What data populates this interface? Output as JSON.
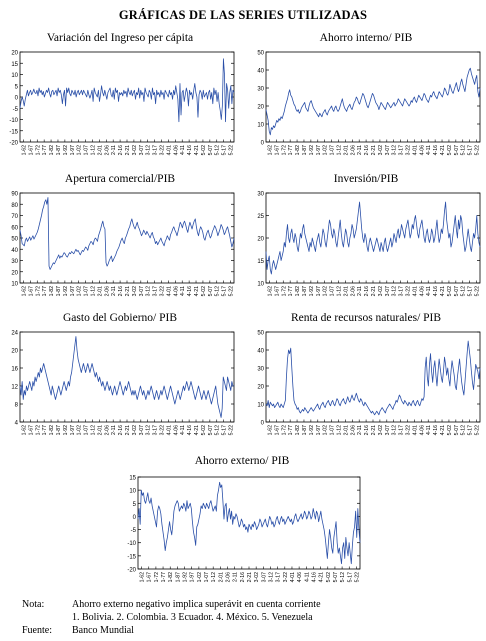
{
  "page_title": "GRÁFICAS DE LAS SERIES UTILIZADAS",
  "x_tick_labels": [
    "1-62",
    "1-67",
    "1-72",
    "1-77",
    "1-82",
    "1-87",
    "1-92",
    "1-97",
    "1-02",
    "1-07",
    "1-12",
    "2-01",
    "2-06",
    "2-11",
    "2-16",
    "2-21",
    "3-02",
    "3-07",
    "3-12",
    "3-17",
    "3-22",
    "4-01",
    "4-06",
    "4-11",
    "4-16",
    "4-21",
    "5-02",
    "5-07",
    "5-12",
    "5-17",
    "5-22"
  ],
  "chart_data": [
    {
      "type": "line",
      "title": "Variación del Ingreso per cápita",
      "ylim": [
        -20,
        20
      ],
      "yticks": [
        -20,
        -15,
        -10,
        -5,
        0,
        5,
        10,
        15,
        20
      ],
      "n_points": 200,
      "values": [
        -5,
        -2,
        0,
        -1.5,
        -4,
        -1,
        1,
        3,
        0.5,
        2,
        3,
        1,
        2,
        3.5,
        2,
        1.5,
        3,
        0.5,
        4,
        2,
        3,
        1,
        2.5,
        0,
        1.5,
        3,
        2,
        4,
        1.5,
        0,
        2.5,
        3,
        1,
        2,
        3,
        0.5,
        4,
        2,
        3,
        1,
        -3,
        1,
        3,
        -4,
        4,
        2,
        4,
        1.5,
        0.5,
        3,
        2,
        1,
        3,
        0,
        2,
        3,
        1,
        2,
        3,
        1,
        3,
        2,
        1,
        0,
        3,
        1,
        -0.5,
        1,
        3,
        -2,
        4,
        2,
        1,
        0,
        3,
        -2,
        1,
        5,
        2,
        0.5,
        3,
        1,
        -1,
        2,
        3,
        4,
        1,
        0,
        3,
        -1,
        4,
        2,
        3,
        -2,
        2,
        1,
        2,
        0.5,
        3,
        1.5,
        2.5,
        0,
        4,
        2,
        1,
        3,
        0.5,
        2,
        3,
        -1,
        2,
        1,
        4,
        -0.5,
        3,
        1,
        2,
        -2,
        4,
        2,
        1,
        0,
        3,
        2,
        -1,
        4,
        1,
        2,
        -3,
        3,
        1,
        2,
        0,
        3,
        1,
        2,
        -1,
        3,
        2,
        1,
        0,
        3,
        1,
        2,
        -1,
        3,
        1,
        5,
        2,
        -1,
        -11,
        6,
        -8,
        2,
        3,
        -2,
        1,
        4,
        2,
        -4,
        3,
        1,
        2,
        -1,
        3,
        6,
        2,
        0,
        -9,
        1,
        3,
        2,
        -1,
        3,
        0,
        1,
        2,
        -1,
        2,
        3,
        -1,
        2,
        -3,
        4,
        1,
        3,
        -2,
        2,
        -3,
        -6,
        -10,
        -4,
        17,
        10,
        -11,
        6,
        3,
        -5,
        2,
        5,
        -3,
        3,
        2
      ]
    },
    {
      "type": "line",
      "title": "Ahorro interno/ PIB",
      "ylim": [
        0,
        50
      ],
      "yticks": [
        0,
        10,
        20,
        30,
        40,
        50
      ],
      "n_points": 200,
      "values": [
        18,
        15,
        12,
        6,
        4,
        8,
        7,
        9,
        8,
        10,
        12,
        11,
        13,
        12,
        14,
        13,
        15,
        17,
        20,
        22,
        24,
        27,
        29,
        26,
        25,
        23,
        21,
        20,
        18,
        17,
        18,
        16,
        17,
        19,
        20,
        21,
        22,
        19,
        18,
        17,
        20,
        22,
        23,
        21,
        19,
        18,
        17,
        16,
        15,
        14,
        16,
        15,
        14,
        16,
        17,
        18,
        16,
        15,
        17,
        18,
        19,
        20,
        18,
        17,
        19,
        20,
        18,
        17,
        18,
        20,
        22,
        24,
        21,
        19,
        18,
        17,
        19,
        20,
        21,
        19,
        18,
        20,
        22,
        23,
        25,
        24,
        22,
        21,
        23,
        25,
        27,
        26,
        24,
        22,
        20,
        19,
        21,
        23,
        25,
        27,
        26,
        24,
        22,
        21,
        20,
        18,
        20,
        22,
        21,
        20,
        19,
        18,
        20,
        22,
        21,
        20,
        19,
        20,
        21,
        22,
        20,
        21,
        22,
        24,
        23,
        22,
        21,
        20,
        22,
        24,
        23,
        22,
        21,
        20,
        21,
        23,
        22,
        24,
        25,
        23,
        22,
        24,
        26,
        25,
        24,
        23,
        25,
        27,
        26,
        24,
        23,
        22,
        24,
        26,
        25,
        27,
        28,
        26,
        25,
        24,
        26,
        28,
        27,
        26,
        25,
        27,
        30,
        29,
        27,
        26,
        28,
        32,
        30,
        28,
        27,
        29,
        31,
        33,
        30,
        28,
        30,
        33,
        35,
        32,
        30,
        28,
        32,
        36,
        38,
        40,
        41,
        38,
        36,
        34,
        32,
        35,
        37,
        28,
        25,
        30
      ]
    },
    {
      "type": "line",
      "title": "Apertura comercial/PIB",
      "ylim": [
        10,
        90
      ],
      "yticks": [
        10,
        20,
        30,
        40,
        50,
        60,
        70,
        80,
        90
      ],
      "n_points": 200,
      "values": [
        57,
        52,
        45,
        44,
        43,
        48,
        50,
        47,
        49,
        51,
        48,
        50,
        52,
        49,
        51,
        53,
        55,
        58,
        62,
        66,
        70,
        75,
        78,
        82,
        84,
        80,
        86,
        25,
        22,
        24,
        26,
        28,
        27,
        29,
        31,
        33,
        35,
        32,
        34,
        33,
        35,
        37,
        36,
        34,
        33,
        35,
        37,
        36,
        38,
        37,
        36,
        38,
        40,
        38,
        39,
        37,
        35,
        37,
        39,
        38,
        40,
        42,
        41,
        39,
        43,
        45,
        47,
        46,
        44,
        48,
        50,
        49,
        47,
        52,
        55,
        58,
        62,
        65,
        60,
        58,
        28,
        25,
        27,
        30,
        32,
        34,
        29,
        31,
        33,
        35,
        38,
        40,
        42,
        45,
        48,
        50,
        47,
        45,
        50,
        52,
        55,
        58,
        60,
        64,
        67,
        63,
        60,
        58,
        61,
        64,
        60,
        58,
        55,
        52,
        54,
        57,
        55,
        53,
        56,
        54,
        52,
        50,
        53,
        55,
        51,
        49,
        45,
        47,
        44,
        46,
        48,
        50,
        47,
        45,
        43,
        47,
        49,
        52,
        50,
        48,
        53,
        55,
        58,
        60,
        57,
        55,
        52,
        56,
        60,
        64,
        62,
        59,
        63,
        65,
        62,
        58,
        55,
        60,
        64,
        61,
        58,
        62,
        65,
        67,
        60,
        55,
        52,
        57,
        60,
        58,
        55,
        50,
        48,
        52,
        55,
        57,
        53,
        50,
        52,
        56,
        58,
        61,
        59,
        56,
        52,
        55,
        58,
        62,
        60,
        57,
        53,
        55,
        58,
        60,
        56,
        52,
        47,
        42,
        45,
        50
      ]
    },
    {
      "type": "line",
      "title": "Inversión/PIB",
      "ylim": [
        10,
        30
      ],
      "yticks": [
        10,
        15,
        20,
        25,
        30
      ],
      "n_points": 200,
      "values": [
        17,
        13,
        15,
        16,
        13,
        12,
        14,
        15,
        14,
        13,
        14,
        15,
        16,
        17,
        15,
        16,
        17,
        19,
        18,
        21,
        23,
        20,
        19,
        21,
        22,
        20,
        19,
        21,
        20,
        18,
        17,
        19,
        21,
        20,
        22,
        23,
        21,
        20,
        19,
        18,
        17,
        19,
        18,
        20,
        19,
        18,
        17,
        19,
        20,
        21,
        19,
        18,
        20,
        22,
        21,
        19,
        18,
        20,
        22,
        24,
        23,
        21,
        20,
        22,
        21,
        19,
        18,
        20,
        22,
        24,
        21,
        19,
        18,
        20,
        22,
        21,
        19,
        18,
        20,
        21,
        23,
        22,
        20,
        21,
        22,
        24,
        26,
        28,
        25,
        22,
        20,
        19,
        21,
        20,
        18,
        17,
        19,
        20,
        19,
        18,
        17,
        18,
        19,
        20,
        19,
        18,
        17,
        19,
        18,
        17,
        19,
        20,
        18,
        17,
        18,
        19,
        20,
        18,
        19,
        21,
        20,
        19,
        21,
        22,
        20,
        21,
        23,
        22,
        21,
        20,
        22,
        23,
        24,
        22,
        20,
        21,
        23,
        22,
        24,
        25,
        23,
        21,
        20,
        22,
        23,
        24,
        22,
        20,
        19,
        21,
        22,
        20,
        19,
        20,
        22,
        21,
        19,
        20,
        22,
        24,
        21,
        19,
        20,
        22,
        21,
        23,
        26,
        28,
        24,
        22,
        20,
        21,
        18,
        19,
        21,
        23,
        25,
        22,
        20,
        24,
        22,
        25,
        24,
        21,
        19,
        17,
        18,
        20,
        22,
        20,
        18,
        17,
        19,
        21,
        20,
        22,
        25,
        21,
        19,
        18
      ]
    },
    {
      "type": "line",
      "title": "Gasto del Gobierno/ PIB",
      "ylim": [
        4,
        24
      ],
      "yticks": [
        4,
        8,
        12,
        16,
        20,
        24
      ],
      "n_points": 200,
      "values": [
        12,
        10,
        13,
        9,
        11,
        10,
        12,
        11,
        12,
        13,
        12,
        11,
        13,
        12,
        14,
        13,
        14,
        15,
        14,
        16,
        15,
        16,
        17,
        16,
        15,
        14,
        13,
        12,
        11,
        10,
        12,
        11,
        10,
        9,
        10,
        11,
        12,
        11,
        10,
        11,
        12,
        13,
        12,
        11,
        12,
        13,
        12,
        14,
        15,
        17,
        19,
        21,
        23,
        20,
        18,
        17,
        16,
        15,
        16,
        17,
        16,
        15,
        16,
        17,
        16,
        15,
        16,
        17,
        16,
        15,
        14,
        15,
        14,
        13,
        14,
        13,
        12,
        13,
        12,
        11,
        12,
        13,
        12,
        11,
        12,
        11,
        10,
        11,
        12,
        11,
        10,
        11,
        12,
        13,
        12,
        11,
        10,
        11,
        12,
        11,
        12,
        13,
        12,
        11,
        10,
        11,
        10,
        11,
        10,
        9,
        10,
        11,
        12,
        11,
        10,
        11,
        10,
        9,
        10,
        11,
        10,
        11,
        12,
        11,
        10,
        9,
        10,
        11,
        10,
        9,
        10,
        11,
        10,
        11,
        12,
        11,
        10,
        9,
        10,
        11,
        12,
        11,
        10,
        9,
        8,
        9,
        10,
        11,
        10,
        9,
        10,
        11,
        12,
        11,
        12,
        13,
        12,
        11,
        12,
        13,
        12,
        11,
        10,
        9,
        10,
        11,
        12,
        11,
        10,
        9,
        10,
        11,
        10,
        9,
        10,
        11,
        10,
        9,
        8,
        9,
        10,
        11,
        12,
        10,
        8,
        7,
        6,
        5,
        7,
        14,
        13,
        12,
        11,
        14,
        13,
        12,
        11,
        13,
        12,
        12
      ]
    },
    {
      "type": "line",
      "title": "Renta de recursos naturales/ PIB",
      "ylim": [
        0,
        50
      ],
      "yticks": [
        0,
        10,
        20,
        30,
        40,
        50
      ],
      "n_points": 200,
      "values": [
        10,
        9,
        12,
        8,
        11,
        10,
        9,
        10,
        8,
        9,
        10,
        11,
        9,
        8,
        10,
        9,
        8,
        10,
        12,
        25,
        35,
        40,
        38,
        41,
        30,
        20,
        12,
        10,
        9,
        7,
        8,
        6,
        5,
        6,
        7,
        6,
        8,
        7,
        6,
        5,
        6,
        7,
        8,
        7,
        6,
        7,
        8,
        9,
        10,
        8,
        7,
        9,
        10,
        11,
        9,
        8,
        10,
        11,
        12,
        10,
        9,
        11,
        12,
        10,
        9,
        11,
        13,
        12,
        10,
        9,
        11,
        12,
        13,
        11,
        10,
        12,
        14,
        12,
        11,
        13,
        15,
        13,
        12,
        14,
        16,
        14,
        12,
        11,
        13,
        12,
        10,
        9,
        11,
        10,
        9,
        8,
        7,
        6,
        5,
        6,
        5,
        4,
        5,
        6,
        5,
        4,
        6,
        7,
        8,
        7,
        6,
        5,
        7,
        8,
        9,
        10,
        9,
        8,
        7,
        9,
        10,
        12,
        11,
        13,
        15,
        14,
        12,
        11,
        10,
        12,
        11,
        10,
        9,
        11,
        10,
        9,
        11,
        12,
        10,
        9,
        11,
        12,
        10,
        9,
        11,
        13,
        12,
        14,
        30,
        36,
        25,
        20,
        32,
        38,
        28,
        22,
        30,
        34,
        26,
        20,
        28,
        35,
        30,
        25,
        22,
        28,
        36,
        32,
        26,
        30,
        24,
        20,
        28,
        34,
        30,
        26,
        20,
        18,
        25,
        30,
        35,
        28,
        22,
        18,
        15,
        22,
        30,
        38,
        45,
        40,
        35,
        28,
        22,
        18,
        25,
        32,
        30,
        28,
        24,
        30
      ]
    },
    {
      "type": "line",
      "title": "Ahorro externo/ PIB",
      "ylim": [
        -20,
        15
      ],
      "yticks": [
        -20,
        -15,
        -10,
        -5,
        0,
        5,
        10,
        15
      ],
      "n_points": 200,
      "values": [
        -1,
        3,
        -3,
        10,
        8,
        9,
        6,
        5,
        7,
        9,
        6,
        5,
        7,
        4,
        2,
        0,
        -2,
        -4,
        2,
        4,
        3,
        1,
        -3,
        -6,
        -9,
        -13,
        -10,
        -8,
        -5,
        -2,
        -5,
        -7,
        -3,
        2,
        4,
        5,
        6,
        5,
        2,
        3,
        4,
        3,
        5,
        4,
        2,
        6,
        3,
        4,
        5,
        3,
        -2,
        -6,
        -8,
        -11,
        -4,
        -3,
        -1,
        1,
        4,
        3,
        5,
        4,
        3,
        5,
        4,
        3,
        5,
        6,
        4,
        2,
        3,
        4,
        2,
        8,
        10,
        13,
        11,
        12,
        6,
        -1,
        4,
        5,
        -2,
        1,
        3,
        -1,
        2,
        -3,
        0,
        -1,
        1,
        0,
        -2,
        -4,
        -3,
        -1,
        -2,
        -4,
        -3,
        -5,
        -4,
        -6,
        -3,
        -4,
        -5,
        -3,
        -4,
        -2,
        -3,
        -5,
        -4,
        -3,
        -1,
        -2,
        -4,
        -3,
        -2,
        -1,
        -3,
        -4,
        -2,
        0,
        -1,
        -3,
        -2,
        -4,
        -3,
        -1,
        0,
        -2,
        -3,
        -1,
        0,
        -2,
        -1,
        -3,
        -2,
        -1,
        0,
        -1,
        -2,
        -1,
        -3,
        -2,
        0,
        1,
        -1,
        -2,
        -1,
        0,
        1,
        -1,
        0,
        2,
        1,
        -1,
        0,
        2,
        1,
        -1,
        0,
        3,
        1,
        -1,
        2,
        1,
        -2,
        0,
        2,
        -1,
        -3,
        -5,
        -8,
        -12,
        -16,
        -10,
        -5,
        -8,
        -12,
        -14,
        -8,
        -5,
        -2,
        -10,
        -14,
        -12,
        -15,
        -18,
        -12,
        -10,
        -16,
        -8,
        -12,
        -15,
        -10,
        -14,
        -18,
        -11,
        -6,
        -4,
        2,
        -8,
        3,
        -5,
        -10
      ]
    }
  ],
  "notes": [
    {
      "label": "Nota:",
      "text": "Ahorro externo negativo implica superávit en cuenta corriente"
    },
    {
      "label": "",
      "text": "1. Bolivia. 2. Colombia. 3 Ecuador. 4. México. 5. Venezuela"
    },
    {
      "label": "Fuente:",
      "text": "Banco Mundial"
    }
  ],
  "colors": {
    "line": "#2a4fa8",
    "frame": "#000000"
  }
}
